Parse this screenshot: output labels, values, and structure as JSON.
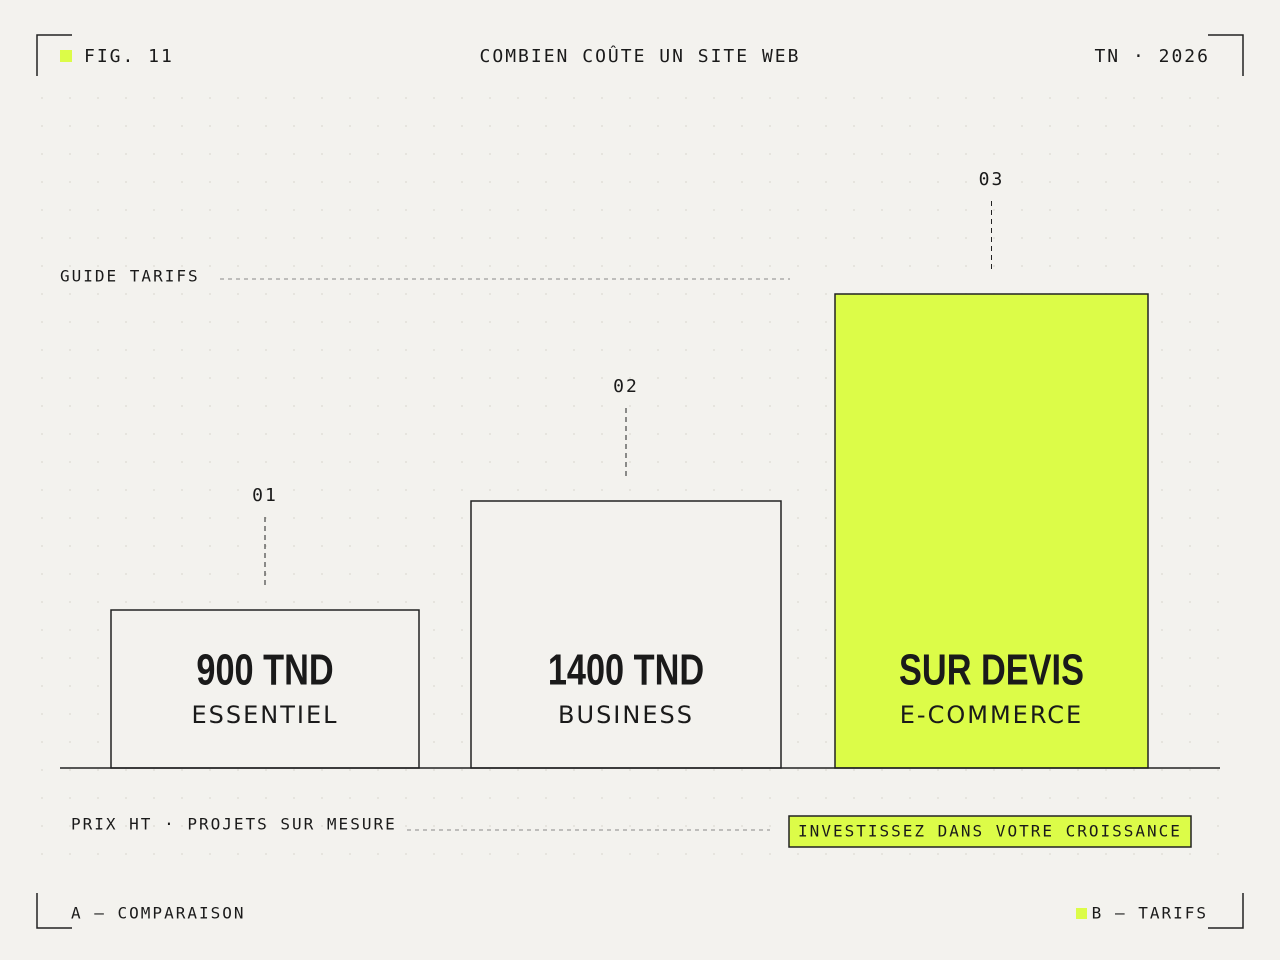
{
  "header": {
    "figure": "FIG. 11",
    "title": "COMBIEN COÛTE UN SITE WEB",
    "meta": "TN · 2026"
  },
  "guide": "GUIDE TARIFS",
  "plans": [
    {
      "index": "01",
      "price": "900 TND",
      "name": "ESSENTIEL"
    },
    {
      "index": "02",
      "price": "1400 TND",
      "name": "BUSINESS"
    },
    {
      "index": "03",
      "price": "SUR DEVIS",
      "name": "E-COMMERCE"
    }
  ],
  "note": "PRIX HT · PROJETS SUR MESURE",
  "cta": "INVESTISSEZ DANS VOTRE CROISSANCE",
  "footer": {
    "left": "A — COMPARAISON",
    "right": "B — TARIFS"
  }
}
